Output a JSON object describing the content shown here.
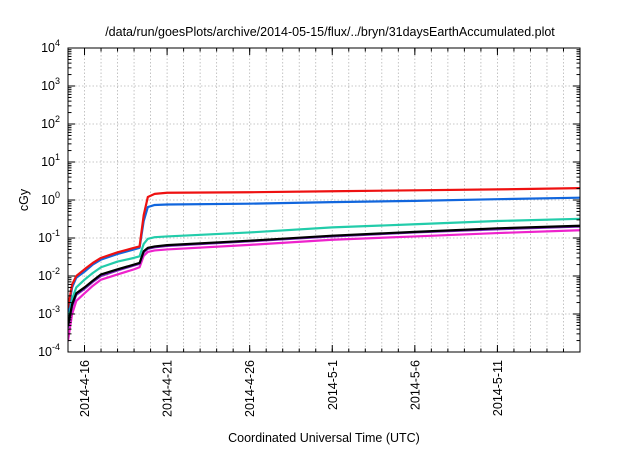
{
  "chart_data": {
    "type": "line",
    "title": "/data/run/goesPlots/archive/2014-05-15/flux/../bryn/31daysEarthAccumulated.plot",
    "xlabel": "Coordinated Universal Time (UTC)",
    "ylabel": "cGy",
    "y_scale": "log",
    "ylim": [
      0.0001,
      10000
    ],
    "y_ticks": [
      {
        "value": 0.0001,
        "base": "10",
        "exp": "-4"
      },
      {
        "value": 0.001,
        "base": "10",
        "exp": "-3"
      },
      {
        "value": 0.01,
        "base": "10",
        "exp": "-2"
      },
      {
        "value": 0.1,
        "base": "10",
        "exp": "-1"
      },
      {
        "value": 1,
        "base": "10",
        "exp": "0"
      },
      {
        "value": 10,
        "base": "10",
        "exp": "1"
      },
      {
        "value": 100,
        "base": "10",
        "exp": "2"
      },
      {
        "value": 1000,
        "base": "10",
        "exp": "3"
      },
      {
        "value": 10000,
        "base": "10",
        "exp": "4"
      }
    ],
    "xlim": [
      "2014-04-15T00:00",
      "2014-05-16T00:00"
    ],
    "x_ticks": [
      {
        "value": "2014-04-16",
        "label": "2014-4-16"
      },
      {
        "value": "2014-04-21",
        "label": "2014-4-21"
      },
      {
        "value": "2014-04-26",
        "label": "2014-4-26"
      },
      {
        "value": "2014-05-01",
        "label": "2014-5-1"
      },
      {
        "value": "2014-05-06",
        "label": "2014-5-6"
      },
      {
        "value": "2014-05-11",
        "label": "2014-5-11"
      }
    ],
    "grid": true,
    "legend": "none",
    "series": [
      {
        "color": "#ee1111",
        "x": [
          "2014-04-15T00:00",
          "2014-04-15T06:00",
          "2014-04-15T12:00",
          "2014-04-16T00:00",
          "2014-04-16T12:00",
          "2014-04-17T00:00",
          "2014-04-18T00:00",
          "2014-04-19T00:00",
          "2014-04-19T08:00",
          "2014-04-19T14:00",
          "2014-04-19T20:00",
          "2014-04-20T06:00",
          "2014-04-21T00:00",
          "2014-04-26T00:00",
          "2014-05-01T00:00",
          "2014-05-06T00:00",
          "2014-05-11T00:00",
          "2014-05-16T00:00"
        ],
        "y": [
          0.0015,
          0.006,
          0.01,
          0.015,
          0.022,
          0.03,
          0.042,
          0.055,
          0.06,
          0.4,
          1.2,
          1.45,
          1.55,
          1.6,
          1.7,
          1.8,
          1.9,
          2.05
        ]
      },
      {
        "color": "#1166dd",
        "x": [
          "2014-04-15T00:00",
          "2014-04-15T06:00",
          "2014-04-15T12:00",
          "2014-04-16T00:00",
          "2014-04-16T12:00",
          "2014-04-17T00:00",
          "2014-04-18T00:00",
          "2014-04-19T00:00",
          "2014-04-19T08:00",
          "2014-04-19T14:00",
          "2014-04-19T20:00",
          "2014-04-20T06:00",
          "2014-04-21T00:00",
          "2014-04-26T00:00",
          "2014-05-01T00:00",
          "2014-05-06T00:00",
          "2014-05-11T00:00",
          "2014-05-16T00:00"
        ],
        "y": [
          0.0012,
          0.005,
          0.009,
          0.013,
          0.02,
          0.027,
          0.038,
          0.05,
          0.055,
          0.28,
          0.65,
          0.74,
          0.76,
          0.8,
          0.88,
          0.95,
          1.05,
          1.15
        ]
      },
      {
        "color": "#22ccaa",
        "x": [
          "2014-04-15T00:00",
          "2014-04-15T06:00",
          "2014-04-15T12:00",
          "2014-04-16T00:00",
          "2014-04-16T12:00",
          "2014-04-17T00:00",
          "2014-04-18T00:00",
          "2014-04-19T00:00",
          "2014-04-19T08:00",
          "2014-04-19T14:00",
          "2014-04-19T20:00",
          "2014-04-20T06:00",
          "2014-04-21T00:00",
          "2014-04-26T00:00",
          "2014-05-01T00:00",
          "2014-05-06T00:00",
          "2014-05-11T00:00",
          "2014-05-16T00:00"
        ],
        "y": [
          0.0008,
          0.0025,
          0.005,
          0.008,
          0.012,
          0.017,
          0.024,
          0.03,
          0.033,
          0.07,
          0.095,
          0.105,
          0.11,
          0.14,
          0.19,
          0.23,
          0.28,
          0.32
        ]
      },
      {
        "color": "#000000",
        "x": [
          "2014-04-15T00:00",
          "2014-04-15T06:00",
          "2014-04-15T12:00",
          "2014-04-16T00:00",
          "2014-04-16T12:00",
          "2014-04-17T00:00",
          "2014-04-18T00:00",
          "2014-04-19T00:00",
          "2014-04-19T08:00",
          "2014-04-19T14:00",
          "2014-04-19T20:00",
          "2014-04-20T06:00",
          "2014-04-21T00:00",
          "2014-04-26T00:00",
          "2014-05-01T00:00",
          "2014-05-06T00:00",
          "2014-05-11T00:00",
          "2014-05-16T00:00"
        ],
        "y": [
          0.0005,
          0.0018,
          0.0035,
          0.005,
          0.0075,
          0.011,
          0.015,
          0.02,
          0.022,
          0.045,
          0.055,
          0.06,
          0.065,
          0.085,
          0.115,
          0.145,
          0.18,
          0.21
        ]
      },
      {
        "color": "#7722bb",
        "x": [
          "2014-04-15T00:00",
          "2014-04-15T06:00",
          "2014-04-15T12:00",
          "2014-04-16T00:00",
          "2014-04-16T12:00",
          "2014-04-17T00:00",
          "2014-04-18T00:00",
          "2014-04-19T00:00",
          "2014-04-19T08:00",
          "2014-04-19T14:00",
          "2014-04-19T20:00",
          "2014-04-20T06:00",
          "2014-04-21T00:00",
          "2014-04-26T00:00",
          "2014-05-01T00:00",
          "2014-05-06T00:00",
          "2014-05-11T00:00",
          "2014-05-16T00:00"
        ],
        "y": [
          0.00045,
          0.0016,
          0.0032,
          0.0046,
          0.007,
          0.01,
          0.014,
          0.019,
          0.021,
          0.042,
          0.052,
          0.057,
          0.062,
          0.082,
          0.11,
          0.14,
          0.17,
          0.2
        ]
      },
      {
        "color": "#ee22cc",
        "x": [
          "2014-04-15T00:00",
          "2014-04-15T06:00",
          "2014-04-15T12:00",
          "2014-04-16T00:00",
          "2014-04-16T12:00",
          "2014-04-17T00:00",
          "2014-04-18T00:00",
          "2014-04-19T00:00",
          "2014-04-19T08:00",
          "2014-04-19T14:00",
          "2014-04-19T20:00",
          "2014-04-20T06:00",
          "2014-04-21T00:00",
          "2014-04-26T00:00",
          "2014-05-01T00:00",
          "2014-05-06T00:00",
          "2014-05-11T00:00",
          "2014-05-16T00:00"
        ],
        "y": [
          0.0002,
          0.001,
          0.0022,
          0.0035,
          0.0055,
          0.008,
          0.011,
          0.015,
          0.017,
          0.034,
          0.043,
          0.047,
          0.05,
          0.066,
          0.09,
          0.11,
          0.135,
          0.16
        ]
      }
    ]
  }
}
